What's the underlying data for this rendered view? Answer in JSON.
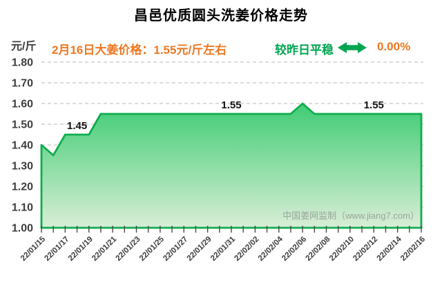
{
  "header": {
    "title": "昌邑优质圆头洗姜价格走势",
    "unit_label": "元/斤",
    "subtitle": "2月16日大姜价格：1.55元/斤左右",
    "status_text": "较昨日平稳",
    "arrow_icon": "horizontal-double-arrow",
    "change_pct": "0.00%"
  },
  "watermark": "中国姜网监制（www.jiang7.com）",
  "colors": {
    "title": "#000000",
    "accent_orange": "#ee7720",
    "status_green": "#00a550",
    "line_green": "#0fac4d",
    "area_fill_top": "#3fcc74",
    "area_fill_bottom": "#d9eed6",
    "axis_label": "#3d3d3d",
    "grid": "#c4c4c4",
    "watermark_gray": "#9aa39c"
  },
  "chart_data": {
    "type": "area",
    "title": "昌邑优质圆头洗姜价格走势",
    "xlabel": "",
    "ylabel": "元/斤",
    "ylim": [
      1.0,
      1.8
    ],
    "yticks": [
      "1.80",
      "1.70",
      "1.60",
      "1.50",
      "1.40",
      "1.30",
      "1.20",
      "1.10",
      "1.00"
    ],
    "grid": "horizontal-dashed",
    "legend": "none",
    "x_frequency": "daily points, tick labels every 2 days",
    "xtick_labels": [
      "22/01/15",
      "22/01/17",
      "22/01/19",
      "22/01/21",
      "22/01/23",
      "22/01/25",
      "22/01/27",
      "22/01/29",
      "22/01/31",
      "22/02/02",
      "22/02/04",
      "22/02/06",
      "22/02/08",
      "22/02/10",
      "22/02/12",
      "22/02/14",
      "22/02/16"
    ],
    "values": [
      1.4,
      1.35,
      1.45,
      1.45,
      1.45,
      1.55,
      1.55,
      1.55,
      1.55,
      1.55,
      1.55,
      1.55,
      1.55,
      1.55,
      1.55,
      1.55,
      1.55,
      1.55,
      1.55,
      1.55,
      1.55,
      1.55,
      1.6,
      1.55,
      1.55,
      1.55,
      1.55,
      1.55,
      1.55,
      1.55,
      1.55,
      1.55,
      1.55
    ],
    "point_labels": [
      {
        "index": 3,
        "text": "1.45"
      },
      {
        "index": 16,
        "text": "1.55"
      },
      {
        "index": 28,
        "text": "1.55"
      }
    ]
  }
}
